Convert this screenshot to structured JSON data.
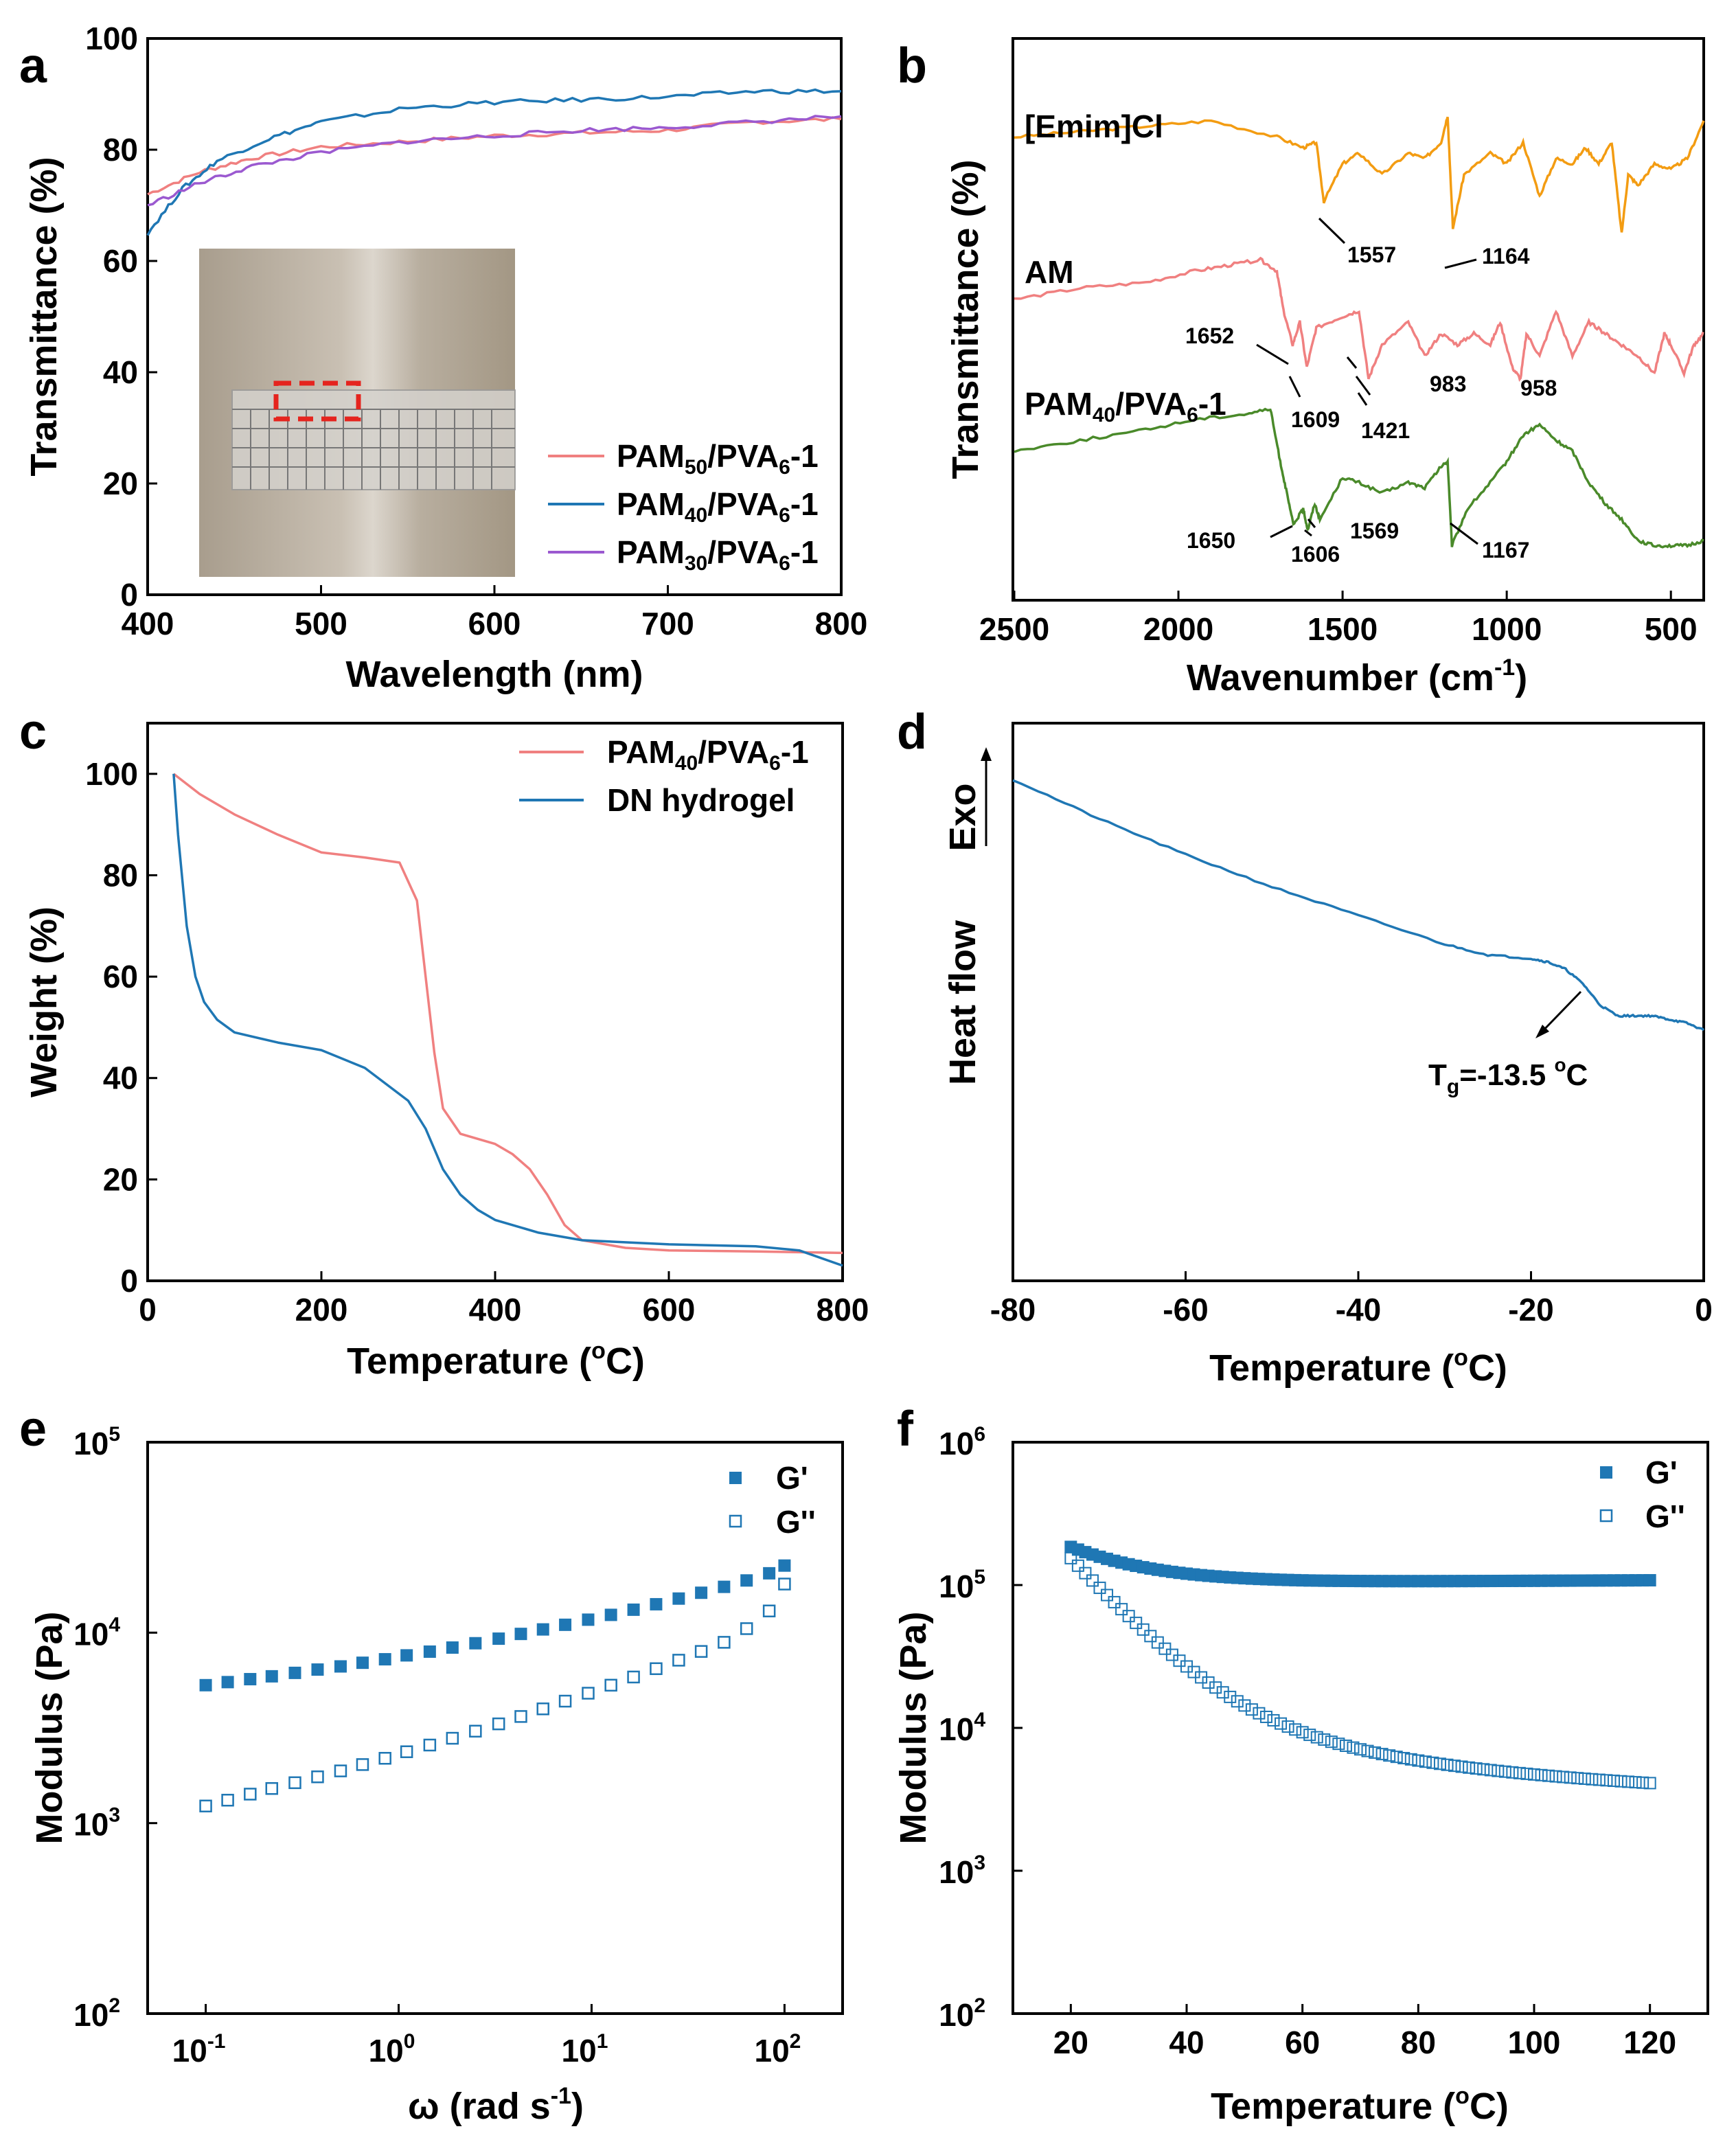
{
  "panels": [
    "a",
    "b",
    "c",
    "d",
    "e",
    "f"
  ],
  "chart_data": [
    {
      "panel": "a",
      "type": "line",
      "xlabel": "Wavelength (nm)",
      "ylabel": "Transmittance (%)",
      "xlim": [
        400,
        800
      ],
      "ylim": [
        0,
        100
      ],
      "xticks": [
        400,
        500,
        600,
        700,
        800
      ],
      "yticks": [
        0,
        20,
        40,
        60,
        80,
        100
      ],
      "inset": "photo of hydrogel film over ruler with dashed red box",
      "series": [
        {
          "name": "PAM50/PVA6-1",
          "base": "PAM",
          "sub1": "50",
          "mid": "/PVA",
          "sub2": "6",
          "tail": "-1",
          "color": "#f08080",
          "x": [
            400,
            430,
            460,
            500,
            550,
            600,
            650,
            700,
            750,
            800
          ],
          "y": [
            72,
            76,
            78.5,
            80.5,
            81.5,
            82.5,
            83,
            83.5,
            85,
            85.5
          ]
        },
        {
          "name": "PAM40/PVA6-1",
          "base": "PAM",
          "sub1": "40",
          "mid": "/PVA",
          "sub2": "6",
          "tail": "-1",
          "color": "#1f77b4",
          "x": [
            400,
            420,
            440,
            470,
            500,
            550,
            600,
            650,
            700,
            750,
            800
          ],
          "y": [
            65,
            73,
            78,
            82,
            85,
            87.5,
            88.5,
            89,
            89.5,
            90.5,
            90.5
          ]
        },
        {
          "name": "PAM30/PVA6-1",
          "base": "PAM",
          "sub1": "30",
          "mid": "/PVA",
          "sub2": "6",
          "tail": "-1",
          "color": "#9b59d0",
          "x": [
            400,
            430,
            460,
            500,
            550,
            600,
            650,
            700,
            750,
            800
          ],
          "y": [
            70,
            74,
            77,
            79.5,
            81.5,
            82.5,
            83.5,
            84,
            85,
            86
          ]
        }
      ]
    },
    {
      "panel": "b",
      "type": "line",
      "xlabel": "Wavenumber (cm",
      "xlabel_sup": "-1",
      "xlabel_close": ")",
      "ylabel": "Transmittance (%)",
      "xlim": [
        2500,
        400
      ],
      "xticks": [
        2500,
        2000,
        1500,
        1000,
        500
      ],
      "curve_labels": {
        "emim": "[Emim]Cl",
        "am": "AM",
        "pam": {
          "base": "PAM",
          "sub1": "40",
          "mid": "/PVA",
          "sub2": "6",
          "tail": "-1"
        }
      },
      "series": [
        {
          "name": "[Emim]Cl",
          "color": "#f39c12",
          "x": [
            2500,
            2300,
            2100,
            1900,
            1700,
            1620,
            1580,
            1557,
            1500,
            1450,
            1380,
            1300,
            1250,
            1200,
            1180,
            1164,
            1130,
            1050,
            1000,
            950,
            900,
            850,
            800,
            760,
            720,
            680,
            650,
            630,
            600,
            550,
            500,
            450,
            400
          ],
          "y": [
            91,
            92,
            93,
            94,
            91,
            89,
            90,
            79,
            86,
            88,
            84,
            88,
            87,
            90,
            95,
            74,
            84,
            88,
            86,
            90,
            80,
            87,
            86,
            89,
            86,
            90,
            73,
            84,
            82,
            86,
            85,
            87,
            94
          ]
        },
        {
          "name": "AM",
          "color": "#f08080",
          "x": [
            2500,
            2300,
            2100,
            1950,
            1850,
            1750,
            1700,
            1680,
            1652,
            1630,
            1609,
            1580,
            1500,
            1450,
            1421,
            1380,
            1300,
            1250,
            1200,
            1150,
            1100,
            1050,
            1020,
            983,
            958,
            940,
            900,
            850,
            800,
            750,
            700,
            650,
            600,
            550,
            520,
            500,
            460,
            430,
            400
          ],
          "y": [
            60,
            62,
            63,
            65,
            66,
            67,
            65,
            58,
            52,
            56,
            48,
            55,
            57,
            58,
            46,
            52,
            56,
            50,
            54,
            52,
            54,
            52,
            56,
            48,
            46,
            54,
            50,
            58,
            50,
            56,
            54,
            52,
            50,
            47,
            54,
            52,
            47,
            52,
            54
          ]
        },
        {
          "name": "PAM40/PVA6-1",
          "color": "#4a8a2a",
          "x": [
            2500,
            2300,
            2100,
            1950,
            1800,
            1720,
            1690,
            1670,
            1650,
            1620,
            1606,
            1585,
            1569,
            1500,
            1450,
            1380,
            1300,
            1250,
            1200,
            1180,
            1167,
            1120,
            1050,
            1000,
            950,
            900,
            850,
            800,
            750,
            700,
            650,
            600,
            550,
            500,
            450,
            400
          ],
          "y": [
            20,
            22,
            24,
            26,
            27,
            28,
            18,
            12,
            6,
            9,
            5,
            10,
            7,
            15,
            14,
            12,
            14,
            13,
            17,
            18,
            2,
            9,
            14,
            18,
            23,
            25,
            22,
            20,
            14,
            10,
            7,
            3,
            2,
            2,
            2,
            3
          ]
        }
      ],
      "annotations": [
        "1557",
        "1164",
        "1652",
        "1609",
        "1421",
        "983",
        "958",
        "1650",
        "1606",
        "1569",
        "1167"
      ]
    },
    {
      "panel": "c",
      "type": "line",
      "xlabel": "Temperature (",
      "xlabel_sup": "o",
      "xlabel_close": "C)",
      "ylabel": "Weight (%)",
      "xlim": [
        0,
        800
      ],
      "ylim": [
        0,
        110
      ],
      "xticks": [
        0,
        200,
        400,
        600,
        800
      ],
      "yticks": [
        0,
        20,
        40,
        60,
        80,
        100
      ],
      "series": [
        {
          "name": "PAM40/PVA6-1",
          "base": "PAM",
          "sub1": "40",
          "mid": "/PVA",
          "sub2": "6",
          "tail": "-1",
          "color": "#f08080",
          "x": [
            30,
            60,
            100,
            150,
            200,
            250,
            290,
            310,
            320,
            330,
            340,
            360,
            380,
            400,
            420,
            440,
            460,
            480,
            500,
            550,
            600,
            700,
            800
          ],
          "y": [
            100,
            96,
            92,
            88,
            84.5,
            83.5,
            82.5,
            75,
            60,
            45,
            34,
            29,
            28,
            27,
            25,
            22,
            17,
            11,
            8,
            6.5,
            6,
            5.8,
            5.5
          ]
        },
        {
          "name": "DN hydrogel",
          "color": "#1f77b4",
          "x": [
            30,
            35,
            45,
            55,
            65,
            80,
            100,
            150,
            200,
            250,
            300,
            320,
            340,
            360,
            380,
            400,
            450,
            500,
            600,
            700,
            750,
            800
          ],
          "y": [
            100,
            88,
            70,
            60,
            55,
            51.5,
            49,
            47,
            45.5,
            42,
            35.5,
            30,
            22,
            17,
            14,
            12,
            9.5,
            8,
            7.2,
            6.8,
            6,
            3
          ]
        }
      ]
    },
    {
      "panel": "d",
      "type": "line",
      "xlabel": "Temperature (",
      "xlabel_sup": "o",
      "xlabel_close": "C)",
      "ylabel": "Heat flow",
      "exo_label": "Exo",
      "xlim": [
        -80,
        0
      ],
      "xticks": [
        -80,
        -60,
        -40,
        -20,
        0
      ],
      "tg_label": {
        "base": "T",
        "sub": "g",
        "rest": "=-13.5 ",
        "sup": "o",
        "unit": "C"
      },
      "series": [
        {
          "name": "Heat flow",
          "color": "#1f77b4",
          "x": [
            -80,
            -70,
            -60,
            -50,
            -40,
            -30,
            -25,
            -20,
            -18,
            -16,
            -14,
            -12,
            -10,
            -8,
            -6,
            -4,
            -2,
            0
          ],
          "y": [
            0,
            -5.5,
            -10.5,
            -15,
            -19,
            -23,
            -24.5,
            -25,
            -25.5,
            -26.5,
            -28.5,
            -31.5,
            -33,
            -33,
            -33,
            -33.5,
            -34,
            -35
          ]
        }
      ]
    },
    {
      "panel": "e",
      "type": "scatter",
      "xlabel": "ω (rad s",
      "xlabel_sup": "-1",
      "xlabel_close": ")",
      "ylabel": "Modulus (Pa)",
      "xscale": "log",
      "yscale": "log",
      "xticks": [
        "10-1",
        "100",
        "101",
        "102"
      ],
      "yticks": [
        "102",
        "103",
        "104",
        "105"
      ],
      "series": [
        {
          "name": "G'",
          "color": "#1f77b4",
          "fill": "solid",
          "x": [
            0.1,
            0.13,
            0.17,
            0.22,
            0.29,
            0.38,
            0.5,
            0.65,
            0.85,
            1.1,
            1.45,
            1.9,
            2.5,
            3.3,
            4.3,
            5.6,
            7.3,
            9.6,
            12.6,
            16.5,
            21.6,
            28.3,
            37,
            48.6,
            63.6,
            83.3,
            100
          ],
          "y": [
            5300,
            5500,
            5700,
            5900,
            6150,
            6400,
            6650,
            6950,
            7250,
            7600,
            7950,
            8350,
            8800,
            9300,
            9850,
            10400,
            11000,
            11700,
            12400,
            13200,
            14100,
            15100,
            16200,
            17400,
            18800,
            20500,
            22500
          ]
        },
        {
          "name": "G''",
          "color": "#1f77b4",
          "fill": "open",
          "x": [
            0.1,
            0.13,
            0.17,
            0.22,
            0.29,
            0.38,
            0.5,
            0.65,
            0.85,
            1.1,
            1.45,
            1.9,
            2.5,
            3.3,
            4.3,
            5.6,
            7.3,
            9.6,
            12.6,
            16.5,
            21.6,
            28.3,
            37,
            48.6,
            63.6,
            83.3,
            100
          ],
          "y": [
            1230,
            1320,
            1420,
            1520,
            1630,
            1750,
            1880,
            2030,
            2190,
            2370,
            2570,
            2790,
            3040,
            3320,
            3630,
            3980,
            4370,
            4810,
            5300,
            5850,
            6470,
            7170,
            7970,
            8900,
            10500,
            13000,
            18000
          ]
        }
      ]
    },
    {
      "panel": "f",
      "type": "scatter",
      "xlabel": "Temperature (",
      "xlabel_sup": "o",
      "xlabel_close": "C)",
      "ylabel": "Modulus (Pa)",
      "xlim": [
        10,
        130
      ],
      "xticks": [
        20,
        40,
        60,
        80,
        100,
        120
      ],
      "yscale": "log",
      "yticks": [
        "102",
        "103",
        "104",
        "105",
        "106"
      ],
      "series": [
        {
          "name": "G'",
          "color": "#1f77b4",
          "fill": "solid",
          "func": "gp",
          "x_from": 20,
          "x_to": 120,
          "n": 80
        },
        {
          "name": "G''",
          "color": "#1f77b4",
          "fill": "open",
          "func": "gpp",
          "x_from": 20,
          "x_to": 120,
          "n": 80
        }
      ]
    }
  ]
}
